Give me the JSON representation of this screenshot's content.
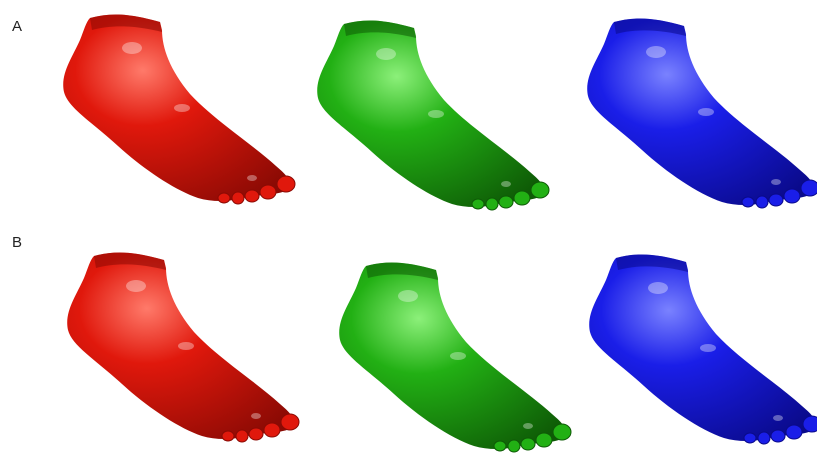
{
  "figure": {
    "rows": [
      {
        "label": "A",
        "models": [
          {
            "color_name": "red",
            "base": "#e0180c",
            "dark": "#8a0a04",
            "light": "#ff7a6a"
          },
          {
            "color_name": "green",
            "base": "#22b014",
            "dark": "#0e5a06",
            "light": "#8cf07a"
          },
          {
            "color_name": "blue",
            "base": "#1a1ee8",
            "dark": "#0a0a8a",
            "light": "#7a82ff"
          }
        ]
      },
      {
        "label": "B",
        "models": [
          {
            "color_name": "red",
            "base": "#e0180c",
            "dark": "#8a0a04",
            "light": "#ff7a6a"
          },
          {
            "color_name": "green",
            "base": "#22b014",
            "dark": "#0e5a06",
            "light": "#8cf07a"
          },
          {
            "color_name": "blue",
            "base": "#1a1ee8",
            "dark": "#0a0a8a",
            "light": "#7a82ff"
          }
        ]
      }
    ]
  }
}
